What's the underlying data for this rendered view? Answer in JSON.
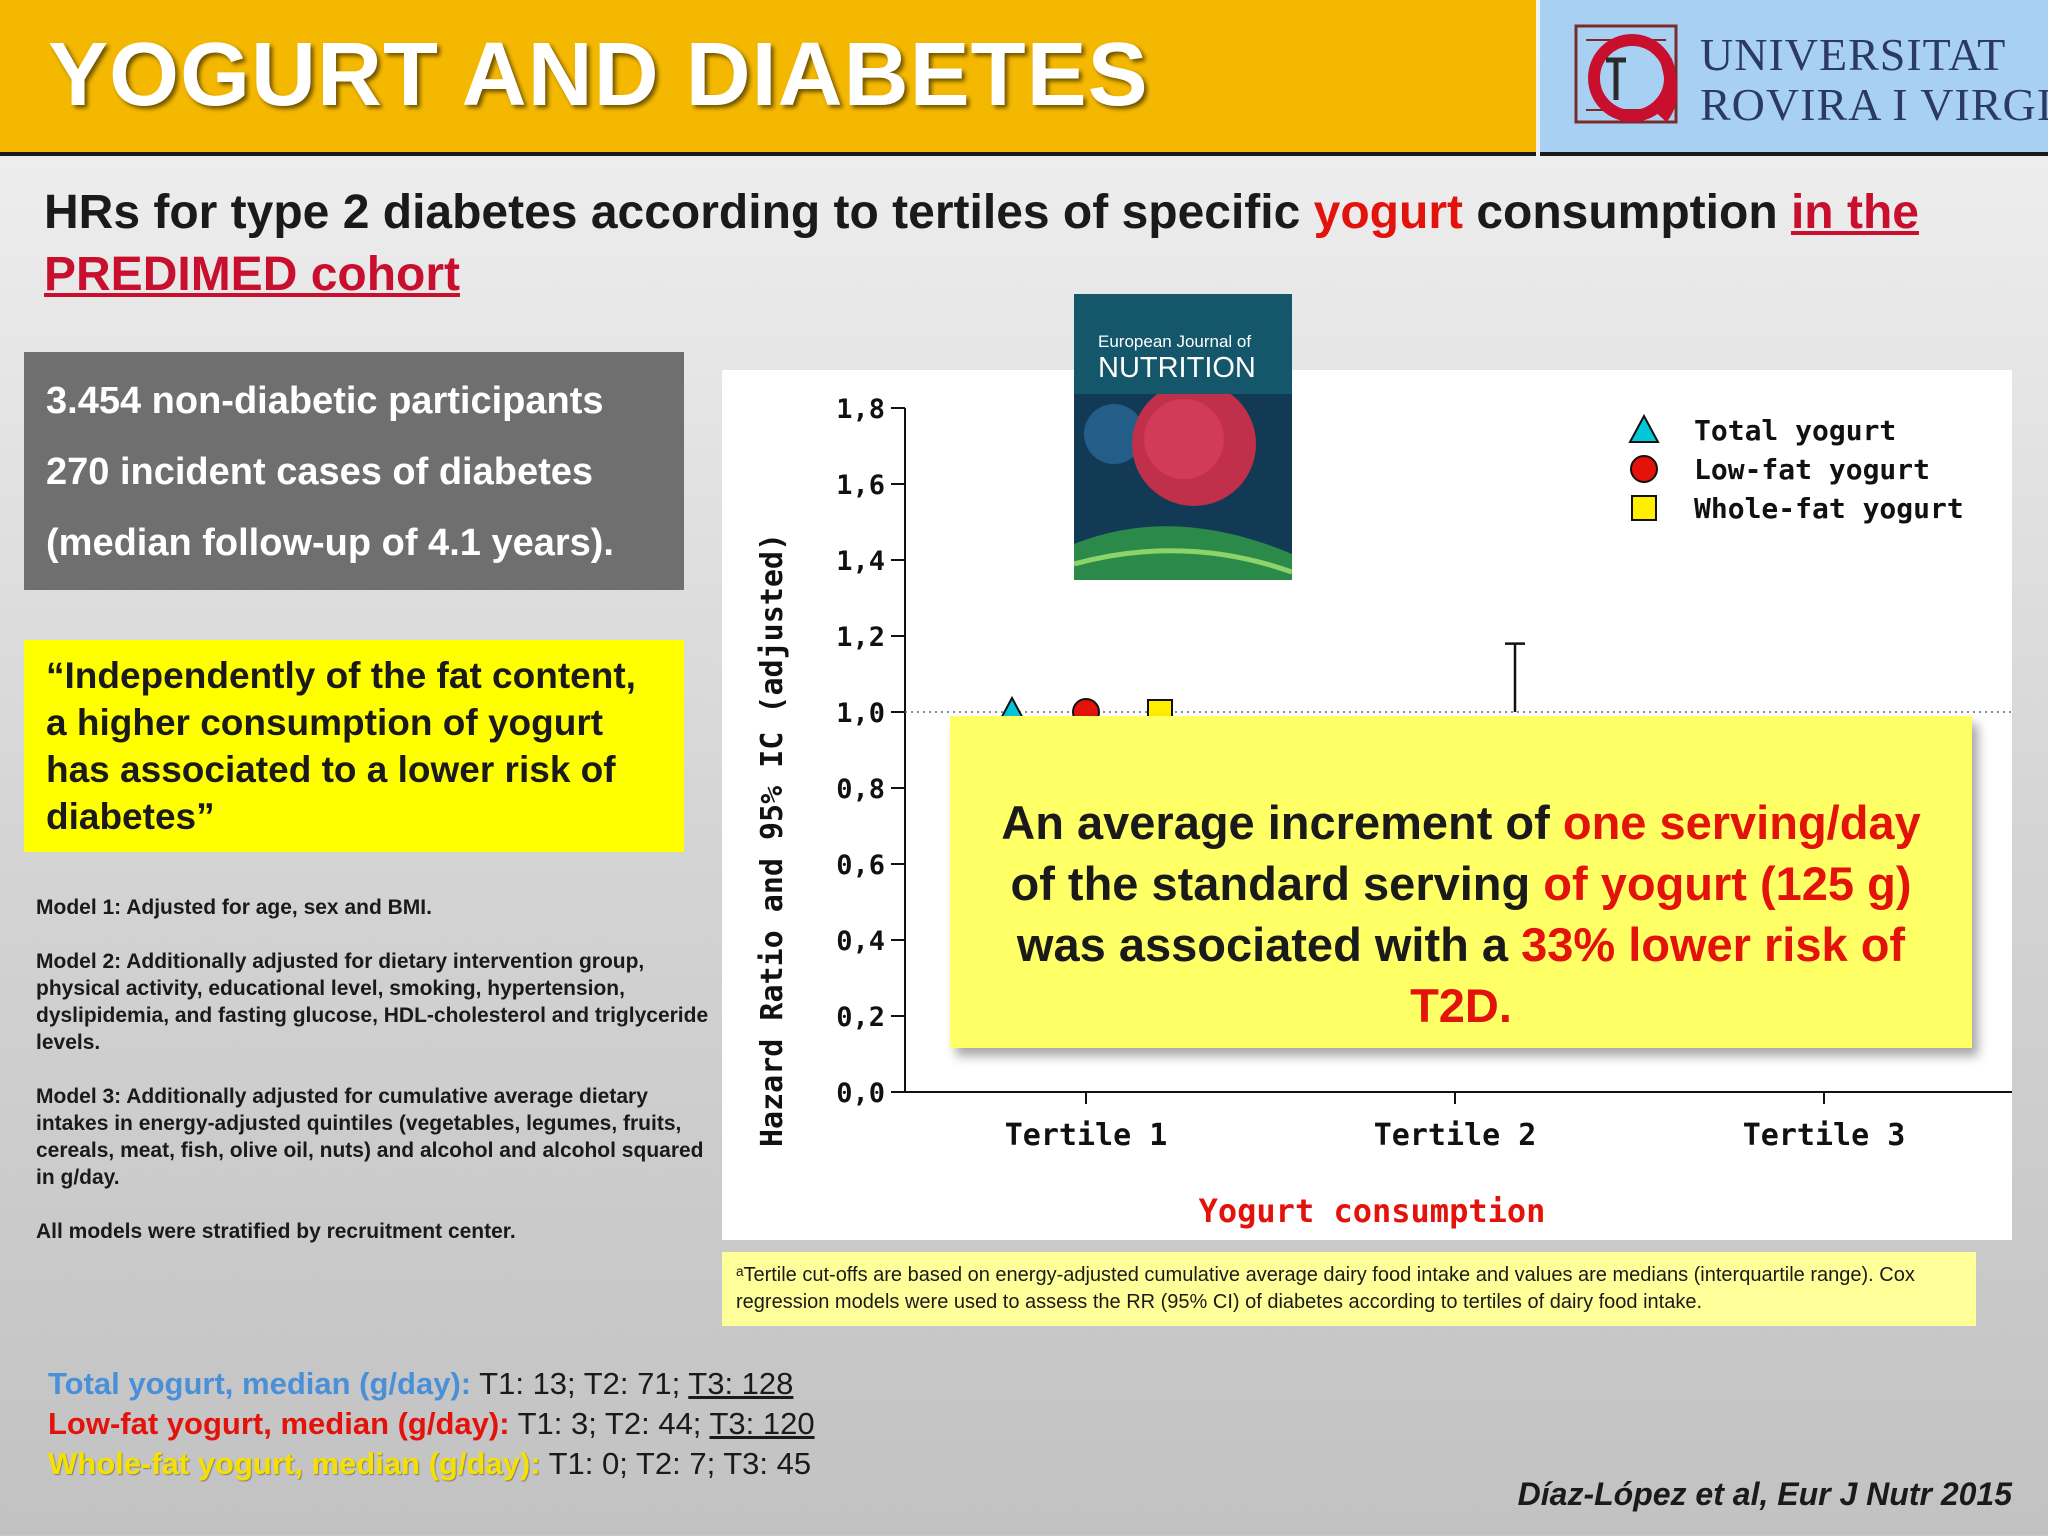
{
  "header": {
    "title": "YOGURT AND DIABETES"
  },
  "logo": {
    "line1": "UNIVERSITAT",
    "line2": "ROVIRA I VIRGILI"
  },
  "subtitle": {
    "part1": "HRs for type 2 diabetes according to tertiles of specific ",
    "highlight": "yogurt",
    "part2": " consumption ",
    "part3": "in the PREDIMED cohort"
  },
  "participants": {
    "line1": "3.454 non-diabetic participants",
    "line2": "270 incident cases of diabetes",
    "line3": "(median follow-up of 4.1 years)."
  },
  "quote": "“Independently of the fat content, a higher consumption of yogurt has associated to a lower risk of diabetes”",
  "models": {
    "m1": "Model 1: Adjusted for age, sex and BMI.",
    "m2": "Model 2: Additionally adjusted for dietary intervention group, physical activity, educational level, smoking, hypertension, dyslipidemia, and fasting glucose, HDL-cholesterol and triglyceride levels.",
    "m3": "Model 3: Additionally adjusted for cumulative average dietary intakes in energy-adjusted quintiles (vegetables, legumes, fruits, cereals, meat, fish, olive oil, nuts) and alcohol and alcohol squared in g/day.",
    "m4": "All models were stratified by recruitment center."
  },
  "journal_cover": {
    "line1": "European Journal of",
    "line2": "NUTRITION"
  },
  "chart_data": {
    "type": "scatter",
    "ylabel": "Hazard Ratio and 95% IC (adjusted)",
    "xlabel": "Yogurt consumption",
    "categories": [
      "Tertile 1",
      "Tertile 2",
      "Tertile 3"
    ],
    "ylim": [
      0.0,
      1.8
    ],
    "yticks": [
      "0,0",
      "0,2",
      "0,4",
      "0,6",
      "0,8",
      "1,0",
      "1,2",
      "1,4",
      "1,6",
      "1,8"
    ],
    "reference_line": 1.0,
    "legend_position": "top-right",
    "series": [
      {
        "name": "Total yogurt",
        "marker": "triangle",
        "color": "#00c8d8",
        "values": [
          1.0,
          null,
          null
        ]
      },
      {
        "name": "Low-fat yogurt",
        "marker": "circle",
        "color": "#e3120b",
        "values": [
          1.0,
          null,
          null
        ]
      },
      {
        "name": "Whole-fat yogurt",
        "marker": "square",
        "color": "#ffee00",
        "values": [
          1.0,
          null,
          null
        ]
      }
    ],
    "visible_error_bar": {
      "category": "Tertile 2",
      "upper": 1.18
    }
  },
  "callout": {
    "t1": "An average increment of ",
    "t2": "one serving/day",
    "t3": " of the standard serving ",
    "t4": "of yogurt (125 g)",
    "t5": " was associated with a ",
    "t6": "33% lower risk of T2D."
  },
  "footnote": "ᵃTertile cut-offs are based on energy-adjusted cumulative average dairy food intake and values are medians (interquartile range). Cox regression models were used to assess the RR (95% CI) of diabetes according to tertiles of dairy food intake.",
  "medians": {
    "total_label": "Total yogurt, median (g/day):",
    "total_vals": " T1: 13; T2: 71; ",
    "total_t3": "T3: 128",
    "low_label": "Low-fat yogurt, median (g/day):",
    "low_vals": " T1: 3; T2: 44; ",
    "low_t3": "T3: 120",
    "whole_label": "Whole-fat yogurt, median (g/day):",
    "whole_vals": " T1: 0; T2: 7; T3: 45"
  },
  "citation": "Díaz-López et al, Eur J Nutr 2015",
  "colors": {
    "header": "#f5b800",
    "logo_bg": "#a8d0f2",
    "accent_red": "#e3120b",
    "callout": "#ffff66",
    "quote": "#ffff00"
  }
}
